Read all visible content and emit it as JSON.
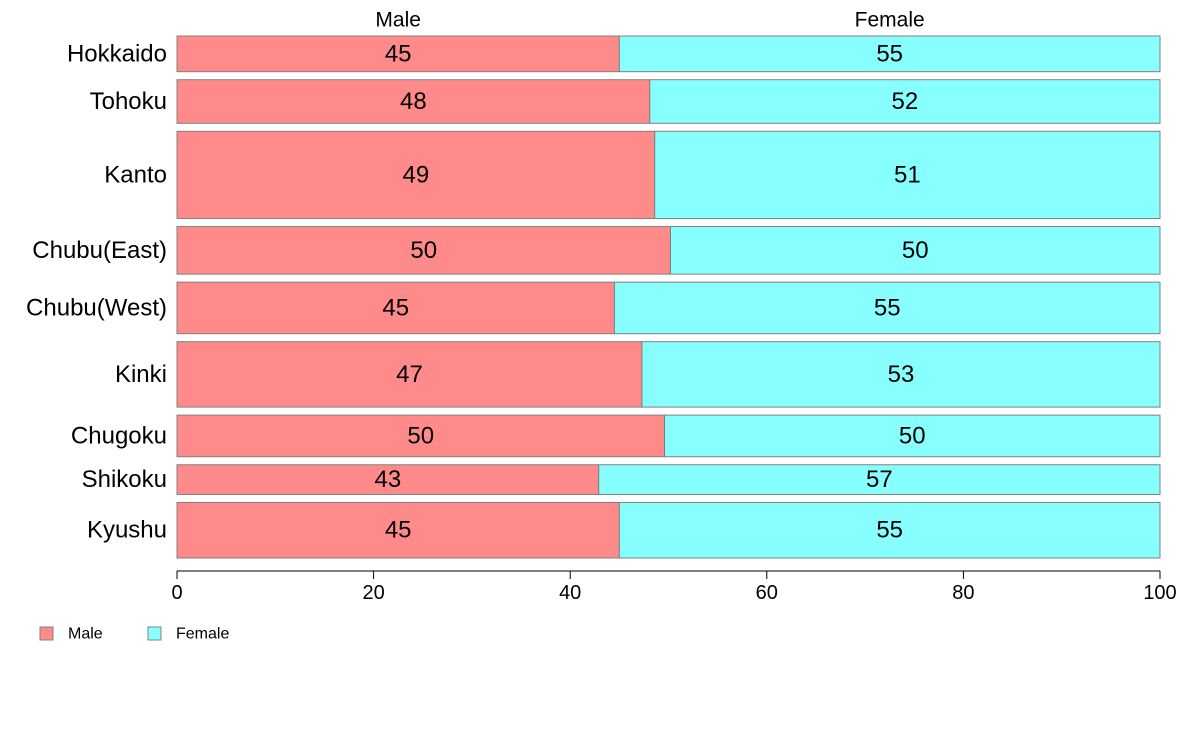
{
  "chart_data": {
    "type": "bar",
    "orientation": "horizontal",
    "stacked": true,
    "normalized_percent": true,
    "categories": [
      "Hokkaido",
      "Tohoku",
      "Kanto",
      "Chubu(East)",
      "Chubu(West)",
      "Kinki",
      "Chugoku",
      "Shikoku",
      "Kyushu"
    ],
    "category_weights": [
      36,
      44,
      88,
      48,
      52,
      66,
      42,
      30,
      56
    ],
    "series": [
      {
        "name": "Male",
        "color": "#FF8A8A",
        "values": [
          45.0,
          48.1,
          48.6,
          50.2,
          44.5,
          47.3,
          49.6,
          42.9,
          45.0
        ],
        "labels": [
          "45",
          "48",
          "49",
          "50",
          "45",
          "47",
          "50",
          "43",
          "45"
        ]
      },
      {
        "name": "Female",
        "color": "#88FFFF",
        "values": [
          55.0,
          51.9,
          51.4,
          49.8,
          55.5,
          52.7,
          50.4,
          57.1,
          55.0
        ],
        "labels": [
          "55",
          "52",
          "51",
          "50",
          "55",
          "53",
          "50",
          "57",
          "55"
        ]
      }
    ],
    "column_headers": [
      "Male",
      "Female"
    ],
    "xlim": [
      0,
      100
    ],
    "xticks": [
      "0",
      "20",
      "40",
      "60",
      "80",
      "100"
    ],
    "grid": false,
    "legend": {
      "position": "bottom-left",
      "entries": [
        "Male",
        "Female"
      ]
    },
    "title": "",
    "xlabel": "",
    "ylabel": ""
  }
}
